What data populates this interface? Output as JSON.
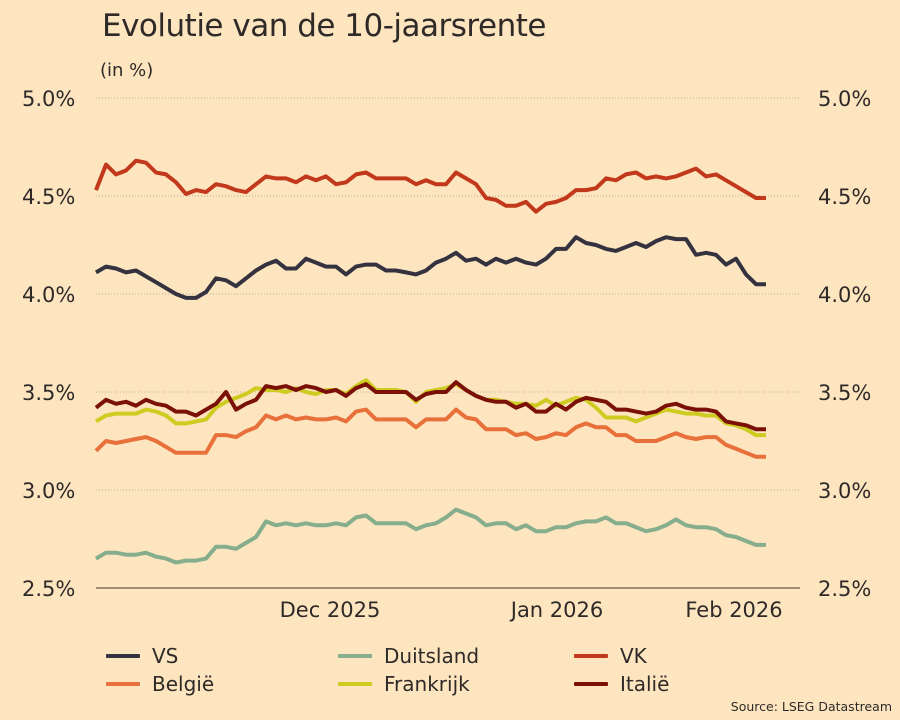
{
  "title": "Evolutie van de 10-jaarsrente",
  "subtitle": "(in %)",
  "source": "Source: LSEG Datastream",
  "chart_data": {
    "type": "line",
    "title": "Evolutie van de 10-jaarsrente",
    "subtitle": "(in %)",
    "xlabel": "",
    "ylabel": "(in %)",
    "ylim": [
      2.5,
      5.0
    ],
    "yticks": [
      2.5,
      3.0,
      3.5,
      4.0,
      4.5,
      5.0
    ],
    "ytick_labels": [
      "2.5%",
      "3.0%",
      "3.5%",
      "4.0%",
      "4.5%",
      "5.0%"
    ],
    "yaxis_both_sides": true,
    "grid": "horizontal dotted",
    "n_points": 68,
    "xticks": [
      {
        "label": "Dec 2025",
        "index": 23.4
      },
      {
        "label": "Jan 2026",
        "index": 46.1
      },
      {
        "label": "Feb 2026",
        "index": 63.8
      }
    ],
    "legend_position": "bottom",
    "series": [
      {
        "name": "VS",
        "color": "#34323f",
        "values": [
          4.11,
          4.14,
          4.13,
          4.11,
          4.12,
          4.09,
          4.06,
          4.03,
          4.0,
          3.98,
          3.98,
          4.01,
          4.08,
          4.07,
          4.04,
          4.08,
          4.12,
          4.15,
          4.17,
          4.13,
          4.13,
          4.18,
          4.16,
          4.14,
          4.14,
          4.1,
          4.14,
          4.15,
          4.15,
          4.12,
          4.12,
          4.11,
          4.1,
          4.12,
          4.16,
          4.18,
          4.21,
          4.17,
          4.18,
          4.15,
          4.18,
          4.16,
          4.18,
          4.16,
          4.15,
          4.18,
          4.23,
          4.23,
          4.29,
          4.26,
          4.25,
          4.23,
          4.22,
          4.24,
          4.26,
          4.24,
          4.27,
          4.29,
          4.28,
          4.28,
          4.2,
          4.21,
          4.2,
          4.15,
          4.18,
          4.1,
          4.05,
          4.05
        ]
      },
      {
        "name": "Duitsland",
        "color": "#86ad8c",
        "values": [
          2.65,
          2.68,
          2.68,
          2.67,
          2.67,
          2.68,
          2.66,
          2.65,
          2.63,
          2.64,
          2.64,
          2.65,
          2.71,
          2.71,
          2.7,
          2.73,
          2.76,
          2.84,
          2.82,
          2.83,
          2.82,
          2.83,
          2.82,
          2.82,
          2.83,
          2.82,
          2.86,
          2.87,
          2.83,
          2.83,
          2.83,
          2.83,
          2.8,
          2.82,
          2.83,
          2.86,
          2.9,
          2.88,
          2.86,
          2.82,
          2.83,
          2.83,
          2.8,
          2.82,
          2.79,
          2.79,
          2.81,
          2.81,
          2.83,
          2.84,
          2.84,
          2.86,
          2.83,
          2.83,
          2.81,
          2.79,
          2.8,
          2.82,
          2.85,
          2.82,
          2.81,
          2.81,
          2.8,
          2.77,
          2.76,
          2.74,
          2.72,
          2.72
        ]
      },
      {
        "name": "VK",
        "color": "#c2381a",
        "values": [
          4.53,
          4.66,
          4.61,
          4.63,
          4.68,
          4.67,
          4.62,
          4.61,
          4.57,
          4.51,
          4.53,
          4.52,
          4.56,
          4.55,
          4.53,
          4.52,
          4.56,
          4.6,
          4.59,
          4.59,
          4.57,
          4.6,
          4.58,
          4.6,
          4.56,
          4.57,
          4.61,
          4.62,
          4.59,
          4.59,
          4.59,
          4.59,
          4.56,
          4.58,
          4.56,
          4.56,
          4.62,
          4.59,
          4.56,
          4.49,
          4.48,
          4.45,
          4.45,
          4.47,
          4.42,
          4.46,
          4.47,
          4.49,
          4.53,
          4.53,
          4.54,
          4.59,
          4.58,
          4.61,
          4.62,
          4.59,
          4.6,
          4.59,
          4.6,
          4.62,
          4.64,
          4.6,
          4.61,
          4.58,
          4.55,
          4.52,
          4.49,
          4.49
        ]
      },
      {
        "name": "België",
        "color": "#e8703a",
        "values": [
          3.2,
          3.25,
          3.24,
          3.25,
          3.26,
          3.27,
          3.25,
          3.22,
          3.19,
          3.19,
          3.19,
          3.19,
          3.28,
          3.28,
          3.27,
          3.3,
          3.32,
          3.38,
          3.36,
          3.38,
          3.36,
          3.37,
          3.36,
          3.36,
          3.37,
          3.35,
          3.4,
          3.41,
          3.36,
          3.36,
          3.36,
          3.36,
          3.32,
          3.36,
          3.36,
          3.36,
          3.41,
          3.37,
          3.36,
          3.31,
          3.31,
          3.31,
          3.28,
          3.29,
          3.26,
          3.27,
          3.29,
          3.28,
          3.32,
          3.34,
          3.32,
          3.32,
          3.28,
          3.28,
          3.25,
          3.25,
          3.25,
          3.27,
          3.29,
          3.27,
          3.26,
          3.27,
          3.27,
          3.23,
          3.21,
          3.19,
          3.17,
          3.17
        ]
      },
      {
        "name": "Frankrijk",
        "color": "#cfcc21",
        "values": [
          3.35,
          3.38,
          3.39,
          3.39,
          3.39,
          3.41,
          3.4,
          3.38,
          3.34,
          3.34,
          3.35,
          3.36,
          3.42,
          3.45,
          3.47,
          3.49,
          3.52,
          3.51,
          3.51,
          3.5,
          3.52,
          3.5,
          3.49,
          3.51,
          3.51,
          3.49,
          3.53,
          3.56,
          3.51,
          3.51,
          3.51,
          3.5,
          3.45,
          3.5,
          3.51,
          3.52,
          3.54,
          3.51,
          3.48,
          3.46,
          3.46,
          3.45,
          3.44,
          3.44,
          3.43,
          3.46,
          3.43,
          3.45,
          3.47,
          3.46,
          3.42,
          3.37,
          3.37,
          3.37,
          3.35,
          3.37,
          3.39,
          3.41,
          3.4,
          3.39,
          3.39,
          3.38,
          3.38,
          3.34,
          3.33,
          3.31,
          3.28,
          3.28
        ]
      },
      {
        "name": "Italië",
        "color": "#7a1008",
        "values": [
          3.42,
          3.46,
          3.44,
          3.45,
          3.43,
          3.46,
          3.44,
          3.43,
          3.4,
          3.4,
          3.38,
          3.41,
          3.44,
          3.5,
          3.41,
          3.44,
          3.46,
          3.53,
          3.52,
          3.53,
          3.51,
          3.53,
          3.52,
          3.5,
          3.51,
          3.48,
          3.52,
          3.54,
          3.5,
          3.5,
          3.5,
          3.5,
          3.46,
          3.49,
          3.5,
          3.5,
          3.55,
          3.51,
          3.48,
          3.46,
          3.45,
          3.45,
          3.42,
          3.44,
          3.4,
          3.4,
          3.44,
          3.41,
          3.45,
          3.47,
          3.46,
          3.45,
          3.41,
          3.41,
          3.4,
          3.39,
          3.4,
          3.43,
          3.44,
          3.42,
          3.41,
          3.41,
          3.4,
          3.35,
          3.34,
          3.33,
          3.31,
          3.31
        ]
      }
    ]
  },
  "legend": {
    "items": [
      {
        "label": "VS",
        "color": "#34323f"
      },
      {
        "label": "Duitsland",
        "color": "#86ad8c"
      },
      {
        "label": "VK",
        "color": "#c2381a"
      },
      {
        "label": "België",
        "color": "#e8703a"
      },
      {
        "label": "Frankrijk",
        "color": "#cfcc21"
      },
      {
        "label": "Italië",
        "color": "#7a1008"
      }
    ]
  }
}
